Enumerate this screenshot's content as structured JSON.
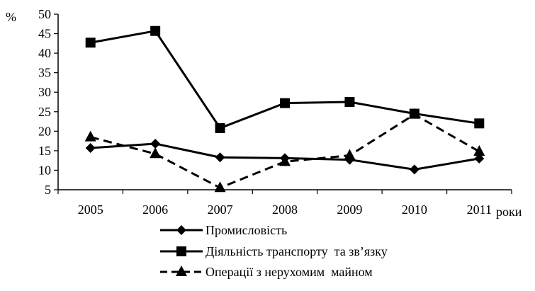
{
  "chart_data": {
    "type": "line",
    "title": "",
    "ylabel": "%",
    "xlabel": "роки",
    "ylim": [
      5,
      50
    ],
    "yticks": [
      5,
      10,
      15,
      20,
      25,
      30,
      35,
      40,
      45,
      50
    ],
    "categories": [
      "2005",
      "2006",
      "2007",
      "2008",
      "2009",
      "2010",
      "2011"
    ],
    "grid": false,
    "legend_position": "bottom",
    "series": [
      {
        "name": "Промисловість",
        "marker": "diamond",
        "dash": "solid",
        "color": "#000000",
        "values": [
          15.7,
          16.8,
          13.3,
          13.1,
          12.7,
          10.2,
          13.0
        ]
      },
      {
        "name": "Діяльність транспорту  та зв’язку",
        "marker": "square",
        "dash": "solid",
        "color": "#000000",
        "values": [
          42.7,
          45.7,
          20.8,
          27.2,
          27.5,
          24.5,
          22.0
        ]
      },
      {
        "name": "Операції з нерухомим  майном",
        "marker": "triangle",
        "dash": "dashed",
        "color": "#000000",
        "values": [
          18.5,
          14.2,
          5.5,
          12.2,
          13.8,
          24.3,
          14.8
        ]
      }
    ]
  }
}
